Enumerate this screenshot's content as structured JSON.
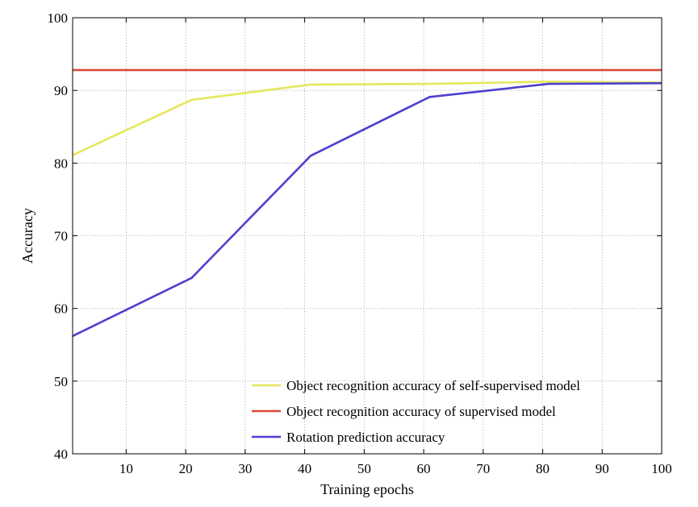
{
  "chart_data": {
    "type": "line",
    "title": "",
    "xlabel": "Training epochs",
    "ylabel": "Accuracy",
    "xlim": [
      1,
      100
    ],
    "ylim": [
      40,
      100
    ],
    "xticks": [
      10,
      20,
      30,
      40,
      50,
      60,
      70,
      80,
      90,
      100
    ],
    "yticks": [
      40,
      50,
      60,
      70,
      80,
      90,
      100
    ],
    "grid": true,
    "legend_position": "bottom-right",
    "series": [
      {
        "name": "Object recognition accuracy of self-supervised model",
        "color": "#e6e65c",
        "x": [
          1,
          21,
          41,
          61,
          81,
          100
        ],
        "y": [
          81.1,
          88.7,
          90.8,
          90.9,
          91.2,
          91.1
        ]
      },
      {
        "name": "Object recognition accuracy of supervised model",
        "color": "#d94a38",
        "x": [
          1,
          100
        ],
        "y": [
          92.8,
          92.8
        ]
      },
      {
        "name": "Rotation prediction accuracy",
        "color": "#4e3fd0",
        "x": [
          1,
          21,
          41,
          61,
          81,
          100
        ],
        "y": [
          56.2,
          64.2,
          81.0,
          89.1,
          90.9,
          91.0
        ]
      }
    ]
  }
}
